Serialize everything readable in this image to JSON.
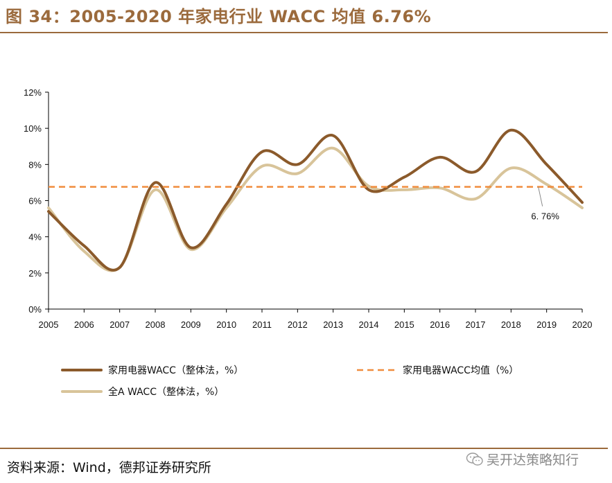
{
  "header": {
    "title": "图 34：2005-2020 年家电行业 WACC 均值 6.76%"
  },
  "footer": {
    "source": "资料来源：Wind，德邦证券研究所",
    "watermark": "吴开达策略知行"
  },
  "colors": {
    "brand": "#9b6a3c",
    "series_appliance": "#8b5a2b",
    "series_allA": "#d8c49a",
    "series_mean": "#f08c3c"
  },
  "chart_data": {
    "type": "line",
    "title": "",
    "xlabel": "",
    "ylabel": "",
    "x": [
      "2005",
      "2006",
      "2007",
      "2008",
      "2009",
      "2010",
      "2011",
      "2012",
      "2013",
      "2014",
      "2015",
      "2016",
      "2017",
      "2018",
      "2019",
      "2020"
    ],
    "ylim": [
      0,
      12
    ],
    "yticks": [
      "0%",
      "2%",
      "4%",
      "6%",
      "8%",
      "10%",
      "12%"
    ],
    "grid": false,
    "series": [
      {
        "name": "家用电器WACC（整体法，%）",
        "style": "solid",
        "values": [
          5.4,
          3.5,
          2.3,
          7.0,
          3.4,
          5.8,
          8.7,
          8.0,
          9.6,
          6.6,
          7.3,
          8.4,
          7.6,
          9.9,
          8.0,
          5.9
        ]
      },
      {
        "name": "家用电器WACC均值（%）",
        "style": "dashed",
        "values": [
          6.76,
          6.76,
          6.76,
          6.76,
          6.76,
          6.76,
          6.76,
          6.76,
          6.76,
          6.76,
          6.76,
          6.76,
          6.76,
          6.76,
          6.76,
          6.76
        ]
      },
      {
        "name": "全A WACC（整体法，%）",
        "style": "solid",
        "values": [
          5.6,
          3.2,
          2.3,
          6.6,
          3.3,
          5.6,
          7.9,
          7.5,
          8.9,
          6.8,
          6.6,
          6.7,
          6.1,
          7.8,
          6.9,
          5.6
        ]
      }
    ],
    "annotations": [
      {
        "text": "6. 76%",
        "series": 2,
        "index": 14
      }
    ],
    "legend": "bottom"
  }
}
